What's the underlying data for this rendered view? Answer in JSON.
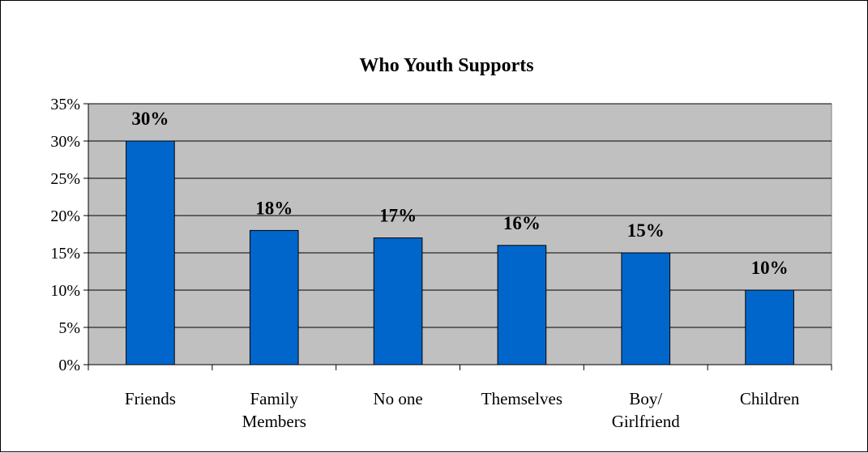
{
  "chart_data": {
    "type": "bar",
    "title": "Who Youth Supports",
    "xlabel": "",
    "ylabel": "",
    "categories": [
      [
        "Friends"
      ],
      [
        "Family",
        "Members"
      ],
      [
        "No one"
      ],
      [
        "Themselves"
      ],
      [
        "Boy/",
        "Girlfriend"
      ],
      [
        "Children"
      ]
    ],
    "values": [
      30,
      18,
      17,
      16,
      15,
      10
    ],
    "data_labels": [
      "30%",
      "18%",
      "17%",
      "16%",
      "15%",
      "10%"
    ],
    "ylim": [
      0,
      35
    ],
    "y_ticks": [
      0,
      5,
      10,
      15,
      20,
      25,
      30,
      35
    ],
    "y_tick_labels": [
      "0%",
      "5%",
      "10%",
      "15%",
      "20%",
      "25%",
      "30%",
      "35%"
    ],
    "grid": true,
    "legend": "none",
    "colors": {
      "bar": "#0066CC",
      "plot_background": "#C0C0C0",
      "gridline": "#000000"
    }
  }
}
